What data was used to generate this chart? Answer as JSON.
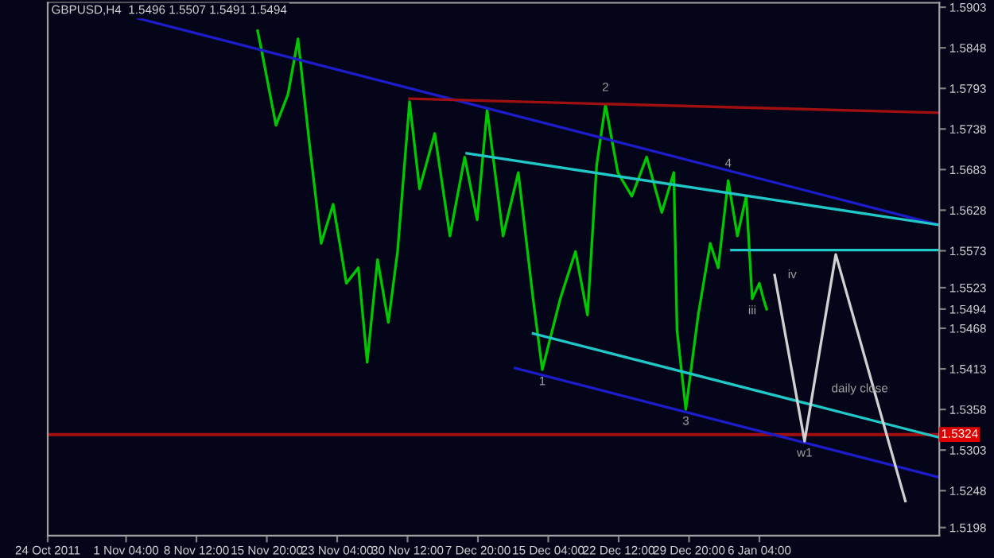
{
  "chart_data": {
    "type": "line",
    "title": "GBPUSD,H4  1.5496 1.5507 1.5491 1.5494",
    "xlim": [
      "2011-10-24T00:00",
      "2012-01-24T22:00"
    ],
    "ylim": [
      1.5187,
      1.5909
    ],
    "xticks": [
      {
        "value": "2011-10-24T00:00",
        "label": "24 Oct 2011"
      },
      {
        "value": "2011-11-01T04:00",
        "label": "1 Nov 04:00"
      },
      {
        "value": "2011-11-08T12:00",
        "label": "8 Nov 12:00"
      },
      {
        "value": "2011-11-15T20:00",
        "label": "15 Nov 20:00"
      },
      {
        "value": "2011-11-23T04:00",
        "label": "23 Nov 04:00"
      },
      {
        "value": "2011-11-30T12:00",
        "label": "30 Nov 12:00"
      },
      {
        "value": "2011-12-07T20:00",
        "label": "7 Dec 20:00"
      },
      {
        "value": "2011-12-15T04:00",
        "label": "15 Dec 04:00"
      },
      {
        "value": "2011-12-22T12:00",
        "label": "22 Dec 12:00"
      },
      {
        "value": "2011-12-29T20:00",
        "label": "29 Dec 20:00"
      },
      {
        "value": "2012-01-06T04:00",
        "label": "6 Jan 04:00"
      }
    ],
    "yticks": [
      1.5903,
      1.5848,
      1.5793,
      1.5738,
      1.5683,
      1.5628,
      1.5573,
      1.5523,
      1.5494,
      1.5468,
      1.5413,
      1.5358,
      1.5303,
      1.5248,
      1.5198
    ],
    "grid": false,
    "legend": false,
    "series": [
      {
        "color": "#00c800",
        "x": [
          "2011-11-14T21:00",
          "2011-11-15T05:00",
          "2011-11-16T19:00",
          "2011-11-18T01:00",
          "2011-11-19T02:00",
          "2011-11-20T06:00",
          "2011-11-21T12:00",
          "2011-11-22T18:00",
          "2011-11-24T03:00",
          "2011-11-25T09:00",
          "2011-11-26T07:00",
          "2011-11-27T09:00",
          "2011-11-28T12:00",
          "2011-11-29T11:00",
          "2011-11-30T17:00",
          "2011-12-01T18:00",
          "2011-12-03T08:00",
          "2011-12-04T22:00",
          "2011-12-06T11:00",
          "2011-12-07T18:00",
          "2011-12-08T19:00",
          "2011-12-10T11:00",
          "2011-12-12T01:00",
          "2011-12-13T14:00",
          "2011-12-14T13:00",
          "2011-12-16T10:00",
          "2011-12-18T00:00",
          "2011-12-19T06:00",
          "2011-12-20T05:00",
          "2011-12-21T03:00",
          "2011-12-22T10:00",
          "2011-12-23T21:00",
          "2011-12-25T10:00",
          "2011-12-27T00:00",
          "2011-12-28T06:00",
          "2011-12-28T14:00",
          "2011-12-29T12:00",
          "2011-12-30T19:00",
          "2012-01-01T01:00",
          "2012-01-01T21:00",
          "2012-01-02T22:00",
          "2012-01-03T21:00",
          "2012-01-04T19:00",
          "2012-01-05T10:00",
          "2012-01-06T04:00",
          "2012-01-06T14:00",
          "2012-01-06T22:00"
        ],
        "values": [
          1.5871,
          1.585,
          1.5743,
          1.5785,
          1.586,
          1.5721,
          1.5583,
          1.5636,
          1.5529,
          1.555,
          1.5422,
          1.5561,
          1.5476,
          1.5572,
          1.5775,
          1.5657,
          1.5732,
          1.5593,
          1.57,
          1.5615,
          1.5764,
          1.5593,
          1.5679,
          1.5508,
          1.5412,
          1.5508,
          1.5572,
          1.5486,
          1.5689,
          1.5771,
          1.5679,
          1.5647,
          1.57,
          1.5625,
          1.5679,
          1.5465,
          1.5358,
          1.5486,
          1.5583,
          1.555,
          1.5668,
          1.5593,
          1.5647,
          1.5508,
          1.5529,
          1.5508,
          1.5494
        ]
      },
      {
        "color": "#1c1cc8",
        "x": [
          "2011-11-02T10:00",
          "2012-01-24T22:00"
        ],
        "values": [
          1.5888,
          1.5608
        ]
      },
      {
        "color": "#a01010",
        "x": [
          "2011-11-30T17:00",
          "2012-01-24T22:00"
        ],
        "values": [
          1.5779,
          1.576
        ]
      },
      {
        "color": "#20c8c8",
        "x": [
          "2011-12-06T16:00",
          "2012-01-24T22:00"
        ],
        "values": [
          1.5705,
          1.5608
        ]
      },
      {
        "color": "#20c8c8",
        "x": [
          "2012-01-03T06:00",
          "2012-01-24T22:00"
        ],
        "values": [
          1.5574,
          1.5574
        ]
      },
      {
        "color": "#20c8c8",
        "x": [
          "2011-12-13T14:00",
          "2012-01-24T22:00"
        ],
        "values": [
          1.5461,
          1.532
        ]
      },
      {
        "color": "#1c1cc8",
        "x": [
          "2011-12-11T17:00",
          "2012-01-24T22:00"
        ],
        "values": [
          1.5414,
          1.5266
        ]
      },
      {
        "color": "#d0d0d0",
        "x": [
          "2012-01-07T18:00",
          "2012-01-10T21:00",
          "2012-01-14T03:00",
          "2012-01-21T09:00"
        ],
        "values": [
          1.554,
          1.5315,
          1.5568,
          1.5234
        ]
      }
    ],
    "ref_lines": [
      {
        "axis": "y",
        "value": 1.5324,
        "label": "1.5324",
        "color": "#a01010"
      }
    ],
    "annotations": [
      {
        "text": "2",
        "x": "2011-12-21T03:00",
        "y": 1.5771
      },
      {
        "text": "4",
        "x": "2012-01-02T22:00",
        "y": 1.5668
      },
      {
        "text": "1",
        "x": "2011-12-14T13:00",
        "y": 1.5412
      },
      {
        "text": "3",
        "x": "2011-12-29T12:00",
        "y": 1.5358
      },
      {
        "text": "iii",
        "x": "2012-01-05T10:00",
        "y": 1.5508
      },
      {
        "text": "iv",
        "x": "2012-01-07T18:00",
        "y": 1.554
      },
      {
        "text": "w1",
        "x": "2012-01-10T21:00",
        "y": 1.5315
      },
      {
        "text": "daily close",
        "x": "2012-01-16T15:00",
        "y": 1.5348
      }
    ]
  }
}
